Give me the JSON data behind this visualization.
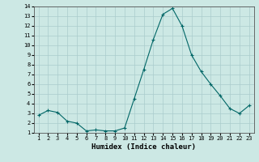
{
  "xlabel": "Humidex (Indice chaleur)",
  "ylabel": "",
  "background_color": "#cce8e4",
  "grid_color": "#aacccc",
  "line_color": "#006666",
  "marker_color": "#006666",
  "x": [
    1,
    2,
    3,
    4,
    5,
    6,
    7,
    8,
    9,
    10,
    11,
    12,
    13,
    14,
    15,
    16,
    17,
    18,
    19,
    20,
    21,
    22,
    23
  ],
  "y": [
    2.8,
    3.3,
    3.1,
    2.2,
    2.0,
    1.2,
    1.3,
    1.2,
    1.2,
    1.5,
    4.5,
    7.5,
    10.6,
    13.2,
    13.8,
    12.0,
    9.0,
    7.3,
    6.0,
    4.8,
    3.5,
    3.0,
    3.8
  ],
  "ylim": [
    1,
    14
  ],
  "xlim": [
    0.5,
    23.5
  ],
  "yticks": [
    1,
    2,
    3,
    4,
    5,
    6,
    7,
    8,
    9,
    10,
    11,
    12,
    13,
    14
  ],
  "xticks": [
    1,
    2,
    3,
    4,
    5,
    6,
    7,
    8,
    9,
    10,
    11,
    12,
    13,
    14,
    15,
    16,
    17,
    18,
    19,
    20,
    21,
    22,
    23
  ]
}
